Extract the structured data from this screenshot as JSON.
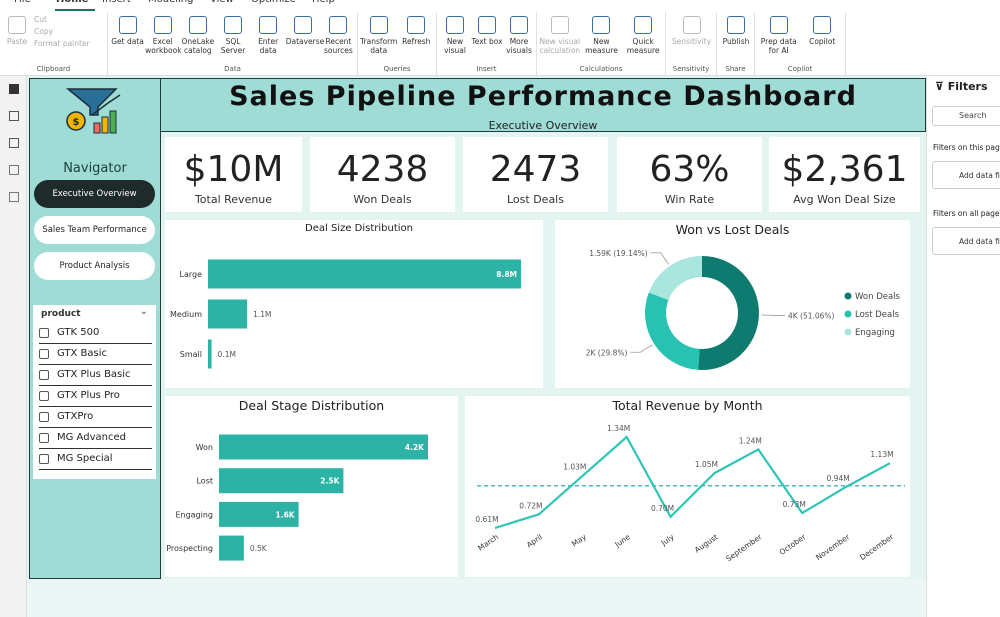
{
  "ribbon": {
    "tabs": [
      "File",
      "Home",
      "Insert",
      "Modeling",
      "View",
      "Optimize",
      "Help"
    ],
    "groups": [
      {
        "name": "Clipboard",
        "items": [
          "Paste",
          "Cut",
          "Copy",
          "Format painter"
        ]
      },
      {
        "name": "Data",
        "items": [
          "Get data",
          "Excel workbook",
          "OneLake catalog",
          "SQL Server",
          "Enter data",
          "Dataverse",
          "Recent sources"
        ]
      },
      {
        "name": "Queries",
        "items": [
          "Transform data",
          "Refresh"
        ]
      },
      {
        "name": "Insert",
        "items": [
          "New visual",
          "Text box",
          "More visuals"
        ]
      },
      {
        "name": "Calculations",
        "items": [
          "New visual calculation",
          "New measure",
          "Quick measure"
        ]
      },
      {
        "name": "Sensitivity",
        "items": [
          "Sensitivity"
        ]
      },
      {
        "name": "Share",
        "items": [
          "Publish"
        ]
      },
      {
        "name": "Copilot",
        "items": [
          "Prep data for AI",
          "Copilot"
        ]
      }
    ]
  },
  "header": {
    "title": "Sales Pipeline Performance Dashboard",
    "subtitle": "Executive Overview"
  },
  "navigator": {
    "title": "Navigator",
    "buttons": [
      "Executive Overview",
      "Sales Team Performance",
      "Product Analysis"
    ],
    "slicer": {
      "title": "product",
      "items": [
        "GTK 500",
        "GTX Basic",
        "GTX Plus Basic",
        "GTX Plus Pro",
        "GTXPro",
        "MG Advanced",
        "MG Special"
      ]
    }
  },
  "kpis": [
    {
      "value": "$10M",
      "label": "Total Revenue"
    },
    {
      "value": "4238",
      "label": "Won Deals"
    },
    {
      "value": "2473",
      "label": "Lost Deals"
    },
    {
      "value": "63%",
      "label": "Win Rate"
    },
    {
      "value": "$2,361",
      "label": "Avg Won Deal Size"
    }
  ],
  "chart_data": [
    {
      "type": "hbar",
      "title": "Deal Size Distribution",
      "categories": [
        "Large",
        "Medium",
        "Small"
      ],
      "values": [
        8.8,
        1.1,
        0.1
      ],
      "value_labels": [
        "8.8M",
        "1.1M",
        "0.1M"
      ],
      "color": "#2db3a6"
    },
    {
      "type": "donut",
      "title": "Won vs Lost Deals",
      "categories": [
        "Won Deals",
        "Lost Deals",
        "Engaging"
      ],
      "values": [
        51.06,
        29.8,
        19.14
      ],
      "value_labels": [
        "4K (51.06%)",
        "2K (29.8%)",
        "1.59K (19.14%)"
      ],
      "colors": [
        "#0f7b70",
        "#27c2b2",
        "#a8e6de"
      ],
      "legend": "right"
    },
    {
      "type": "hbar",
      "title": "Deal Stage Distribution",
      "categories": [
        "Won",
        "Lost",
        "Engaging",
        "Prospecting"
      ],
      "values": [
        4.2,
        2.5,
        1.6,
        0.5
      ],
      "value_labels": [
        "4.2K",
        "2.5K",
        "1.6K",
        "0.5K"
      ],
      "color": "#2db3a6"
    },
    {
      "type": "line",
      "title": "Total Revenue by Month",
      "categories": [
        "March",
        "April",
        "May",
        "June",
        "July",
        "August",
        "September",
        "October",
        "November",
        "December"
      ],
      "values": [
        0.61,
        0.72,
        1.03,
        1.34,
        0.7,
        1.05,
        1.24,
        0.73,
        0.94,
        1.13
      ],
      "value_labels": [
        "0.61M",
        "0.72M",
        "1.03M",
        "1.34M",
        "0.70M",
        "1.05M",
        "1.24M",
        "0.73M",
        "0.94M",
        "1.13M"
      ],
      "color": "#2ec4b6"
    }
  ],
  "filters": {
    "title": "Filters",
    "search": "Search",
    "sections": [
      {
        "title": "Filters on this page",
        "placeholder": "Add data fields here"
      },
      {
        "title": "Filters on all pages",
        "placeholder": "Add data fields here"
      }
    ]
  }
}
